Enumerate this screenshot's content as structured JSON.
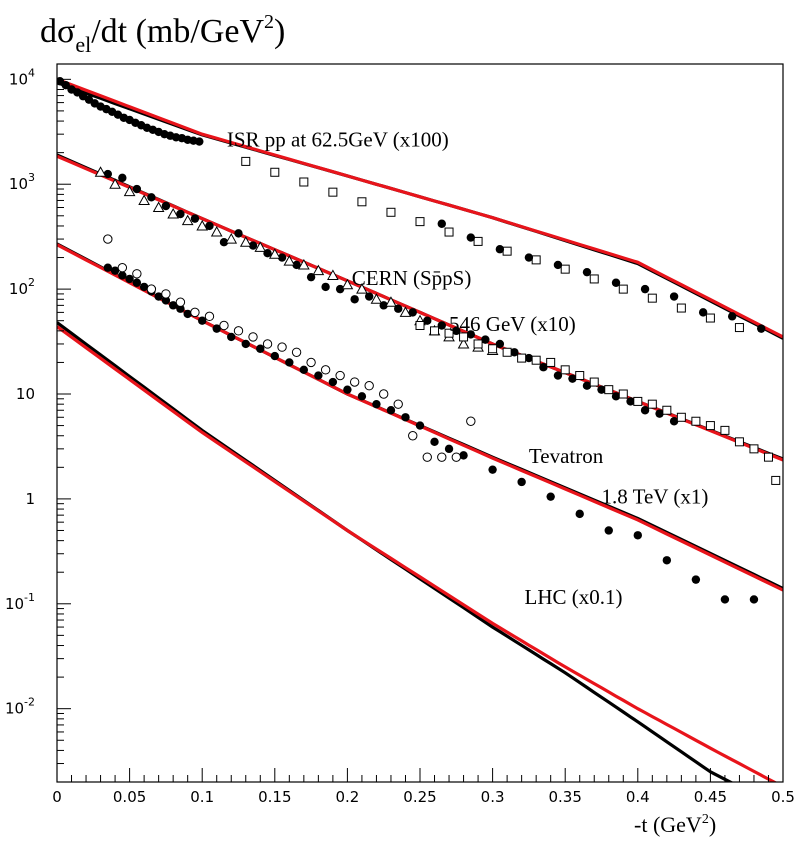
{
  "chart_data": {
    "type": "scatter",
    "title": "dσ_el/dt (mb/GeV²)",
    "title_parts": {
      "main": "dσ",
      "sub": "el",
      "rest": "/dt  (mb/GeV",
      "sup": "2",
      "close": ")"
    },
    "xlabel": "-t (GeV²)",
    "xlabel_parts": {
      "main": "-t  (GeV",
      "sup": "2",
      "close": ")"
    },
    "xlim": [
      0,
      0.5
    ],
    "ylim": [
      0.002,
      14000
    ],
    "yscale": "log",
    "grid": false,
    "x_ticks": [
      "0",
      "0.05",
      "0.1",
      "0.15",
      "0.2",
      "0.25",
      "0.3",
      "0.35",
      "0.4",
      "0.45",
      "0.5"
    ],
    "y_ticks": [
      {
        "base": "10",
        "exp": "-2",
        "value": 0.01
      },
      {
        "base": "10",
        "exp": "-1",
        "value": 0.1
      },
      {
        "base": "1",
        "exp": "",
        "value": 1
      },
      {
        "base": "10",
        "exp": "",
        "value": 10
      },
      {
        "base": "10",
        "exp": "2",
        "value": 100
      },
      {
        "base": "10",
        "exp": "3",
        "value": 1000
      },
      {
        "base": "10",
        "exp": "4",
        "value": 10000
      }
    ],
    "annotations": [
      {
        "text": "ISR pp at 62.5GeV   (x100)",
        "x": 0.117,
        "y": 2300
      },
      {
        "text": "CERN (Sp̄pS)",
        "x": 0.203,
        "y": 110
      },
      {
        "text": "546 GeV  (x10)",
        "x": 0.27,
        "y": 40
      },
      {
        "text": "Tevatron",
        "x": 0.325,
        "y": 2.2
      },
      {
        "text": "1.8 TeV (x1)",
        "x": 0.375,
        "y": 0.9
      },
      {
        "text": "LHC (x0.1)",
        "x": 0.322,
        "y": 0.1
      }
    ],
    "colors": {
      "model_a": "#000000",
      "model_b": "#e8141b",
      "data": "#000000"
    },
    "series": [
      {
        "kind": "line",
        "color": "#000000",
        "x": [
          0,
          0.1,
          0.2,
          0.3,
          0.4,
          0.5
        ],
        "y": [
          9300,
          2950,
          1200,
          480,
          175,
          34
        ]
      },
      {
        "kind": "line",
        "color": "#e8141b",
        "x": [
          0,
          0.1,
          0.2,
          0.3,
          0.4,
          0.5
        ],
        "y": [
          10000,
          3000,
          1200,
          480,
          180,
          35
        ]
      },
      {
        "kind": "line",
        "color": "#000000",
        "x": [
          0,
          0.1,
          0.2,
          0.3,
          0.4,
          0.5
        ],
        "y": [
          1900,
          470,
          120,
          30,
          8.5,
          2.4
        ]
      },
      {
        "kind": "line",
        "color": "#e8141b",
        "x": [
          0,
          0.1,
          0.2,
          0.3,
          0.4,
          0.5
        ],
        "y": [
          1850,
          470,
          120,
          30,
          8.5,
          2.35
        ]
      },
      {
        "kind": "line",
        "color": "#000000",
        "x": [
          0,
          0.1,
          0.2,
          0.3,
          0.4,
          0.5
        ],
        "y": [
          270,
          50,
          10,
          2.5,
          0.65,
          0.14
        ]
      },
      {
        "kind": "line",
        "color": "#e8141b",
        "x": [
          0,
          0.1,
          0.2,
          0.3,
          0.4,
          0.5
        ],
        "y": [
          265,
          50,
          10,
          2.45,
          0.63,
          0.135
        ]
      },
      {
        "kind": "line",
        "color": "#000000",
        "x": [
          0,
          0.1,
          0.2,
          0.3,
          0.35,
          0.4,
          0.45,
          0.47
        ],
        "y": [
          48,
          4.5,
          0.5,
          0.06,
          0.022,
          0.0075,
          0.0025,
          0.0018
        ]
      },
      {
        "kind": "line",
        "color": "#e8141b",
        "x": [
          0,
          0.1,
          0.2,
          0.3,
          0.35,
          0.4,
          0.45,
          0.5
        ],
        "y": [
          44,
          4.3,
          0.5,
          0.065,
          0.025,
          0.01,
          0.0042,
          0.0018
        ]
      },
      {
        "kind": "points",
        "marker": "filled-circle",
        "x": [
          0.002,
          0.006,
          0.01,
          0.014,
          0.018,
          0.022,
          0.026,
          0.03,
          0.034,
          0.038,
          0.042,
          0.046,
          0.05,
          0.054,
          0.058,
          0.062,
          0.066,
          0.07,
          0.074,
          0.078,
          0.082,
          0.086,
          0.09,
          0.094,
          0.098
        ],
        "y": [
          9600,
          8800,
          8000,
          7500,
          6900,
          6400,
          5900,
          5500,
          5200,
          4900,
          4600,
          4300,
          4100,
          3850,
          3650,
          3450,
          3300,
          3150,
          3000,
          2900,
          2800,
          2750,
          2650,
          2600,
          2550
        ]
      },
      {
        "kind": "points",
        "marker": "open-square",
        "x": [
          0.13,
          0.15,
          0.17,
          0.19,
          0.21,
          0.23,
          0.25,
          0.27,
          0.29,
          0.31,
          0.33,
          0.35,
          0.37,
          0.39,
          0.41,
          0.43,
          0.45,
          0.47
        ],
        "y": [
          1650,
          1300,
          1050,
          840,
          680,
          540,
          440,
          350,
          285,
          230,
          190,
          155,
          125,
          100,
          82,
          66,
          53,
          43
        ]
      },
      {
        "kind": "points",
        "marker": "filled-circle",
        "x": [
          0.265,
          0.285,
          0.305,
          0.325,
          0.345,
          0.365,
          0.385,
          0.405,
          0.425,
          0.445,
          0.465,
          0.485
        ],
        "y": [
          420,
          310,
          240,
          200,
          170,
          145,
          115,
          100,
          85,
          60,
          55,
          42
        ]
      },
      {
        "kind": "points",
        "marker": "filled-circle",
        "x": [
          0.035,
          0.045,
          0.055,
          0.065,
          0.075,
          0.085,
          0.095,
          0.105,
          0.115,
          0.125,
          0.135,
          0.145,
          0.155,
          0.165,
          0.175,
          0.185,
          0.195,
          0.205,
          0.215,
          0.225,
          0.235,
          0.245,
          0.255,
          0.265,
          0.275,
          0.285,
          0.295,
          0.305,
          0.315,
          0.325,
          0.335,
          0.345,
          0.355,
          0.365,
          0.375,
          0.385,
          0.395,
          0.405,
          0.415,
          0.425
        ],
        "y": [
          1250,
          1150,
          900,
          750,
          620,
          520,
          470,
          400,
          280,
          340,
          260,
          220,
          200,
          170,
          130,
          105,
          100,
          80,
          85,
          70,
          65,
          60,
          50,
          45,
          40,
          37,
          33,
          30,
          25,
          22,
          18,
          15,
          14,
          12,
          11,
          9.5,
          8.5,
          7,
          6.5,
          5.5
        ]
      },
      {
        "kind": "points",
        "marker": "open-triangle",
        "x": [
          0.03,
          0.04,
          0.05,
          0.06,
          0.07,
          0.08,
          0.09,
          0.1,
          0.11,
          0.12,
          0.13,
          0.14,
          0.15,
          0.16,
          0.17,
          0.18,
          0.19,
          0.2,
          0.21,
          0.22,
          0.23,
          0.24,
          0.25,
          0.26,
          0.27,
          0.28,
          0.29,
          0.3
        ],
        "y": [
          1300,
          1000,
          850,
          700,
          600,
          520,
          450,
          400,
          350,
          300,
          280,
          250,
          215,
          185,
          170,
          150,
          135,
          110,
          100,
          80,
          75,
          60,
          50,
          40,
          35,
          30,
          28,
          26
        ]
      },
      {
        "kind": "points",
        "marker": "open-square",
        "x": [
          0.25,
          0.26,
          0.27,
          0.28,
          0.29,
          0.3,
          0.31,
          0.32,
          0.33,
          0.34,
          0.35,
          0.36,
          0.37,
          0.38,
          0.39,
          0.4,
          0.41,
          0.42,
          0.43,
          0.44,
          0.45,
          0.46,
          0.47,
          0.48,
          0.49,
          0.495
        ],
        "y": [
          45,
          40,
          38,
          35,
          30,
          27,
          25,
          22,
          21,
          20,
          17,
          15,
          13,
          11,
          10,
          8.5,
          8,
          7,
          6,
          5.5,
          5,
          4.5,
          3.5,
          3,
          2.5,
          1.5
        ]
      },
      {
        "kind": "points",
        "marker": "filled-circle",
        "x": [
          0.035,
          0.04,
          0.045,
          0.05,
          0.055,
          0.06,
          0.065,
          0.07,
          0.075,
          0.08,
          0.085,
          0.09,
          0.1,
          0.11,
          0.12,
          0.13,
          0.14,
          0.15,
          0.16,
          0.17,
          0.18,
          0.19,
          0.2,
          0.21,
          0.22,
          0.23,
          0.24,
          0.25,
          0.26,
          0.27,
          0.28,
          0.3,
          0.32,
          0.34,
          0.36,
          0.38,
          0.4,
          0.42,
          0.44,
          0.46,
          0.48
        ],
        "y": [
          160,
          150,
          135,
          125,
          115,
          105,
          95,
          85,
          78,
          70,
          65,
          58,
          50,
          42,
          35,
          30,
          27,
          23,
          20,
          17,
          15,
          13,
          11,
          9.5,
          8,
          7,
          6,
          5,
          3.5,
          3,
          2.6,
          1.9,
          1.45,
          1.05,
          0.72,
          0.5,
          0.45,
          0.26,
          0.17,
          0.11,
          0.11
        ]
      },
      {
        "kind": "points",
        "marker": "open-circle",
        "x": [
          0.035,
          0.045,
          0.055,
          0.065,
          0.075,
          0.085,
          0.095,
          0.105,
          0.115,
          0.125,
          0.135,
          0.145,
          0.155,
          0.165,
          0.175,
          0.185,
          0.195,
          0.205,
          0.215,
          0.225,
          0.235,
          0.245,
          0.255,
          0.265,
          0.275,
          0.285
        ],
        "y": [
          300,
          160,
          140,
          100,
          90,
          75,
          60,
          55,
          45,
          40,
          35,
          30,
          28,
          25,
          20,
          17,
          15,
          13,
          12,
          10,
          8,
          4,
          2.5,
          2.5,
          2.5,
          5.5
        ]
      }
    ]
  }
}
